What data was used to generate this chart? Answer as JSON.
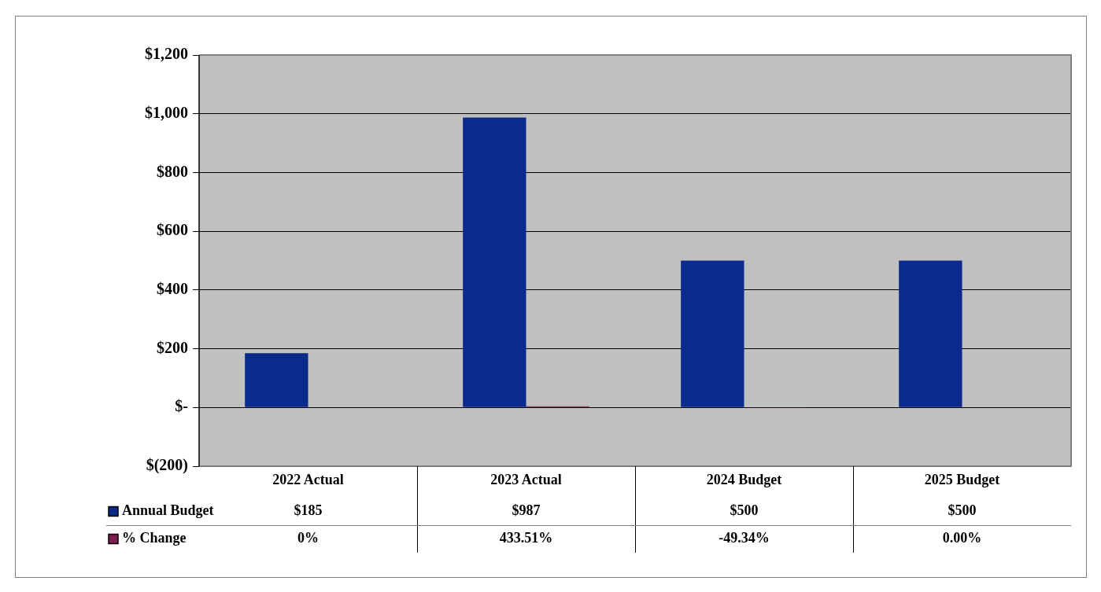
{
  "chart_data": {
    "type": "bar",
    "categories": [
      "2022 Actual",
      "2023 Actual",
      "2024 Budget",
      "2025 Budget"
    ],
    "series": [
      {
        "name": "Annual Budget",
        "color": "#0a2a8c",
        "values": [
          185,
          987,
          500,
          500
        ],
        "value_labels": [
          "$185",
          "$987",
          "$500",
          "$500"
        ]
      },
      {
        "name": "% Change",
        "color": "#7a2050",
        "values": [
          0,
          4.3351,
          -0.4934,
          0
        ],
        "value_labels": [
          "0%",
          "433.51%",
          "-49.34%",
          "0.00%"
        ]
      }
    ],
    "ylim": [
      -200,
      1200
    ],
    "yticks": [
      {
        "value": -200,
        "label": "$(200)"
      },
      {
        "value": 0,
        "label": "$-"
      },
      {
        "value": 200,
        "label": "$200"
      },
      {
        "value": 400,
        "label": "$400"
      },
      {
        "value": 600,
        "label": "$600"
      },
      {
        "value": 800,
        "label": "$800"
      },
      {
        "value": 1000,
        "label": "$1,000"
      },
      {
        "value": 1200,
        "label": "$1,200"
      }
    ],
    "grid": "y",
    "legend": "bottom"
  }
}
